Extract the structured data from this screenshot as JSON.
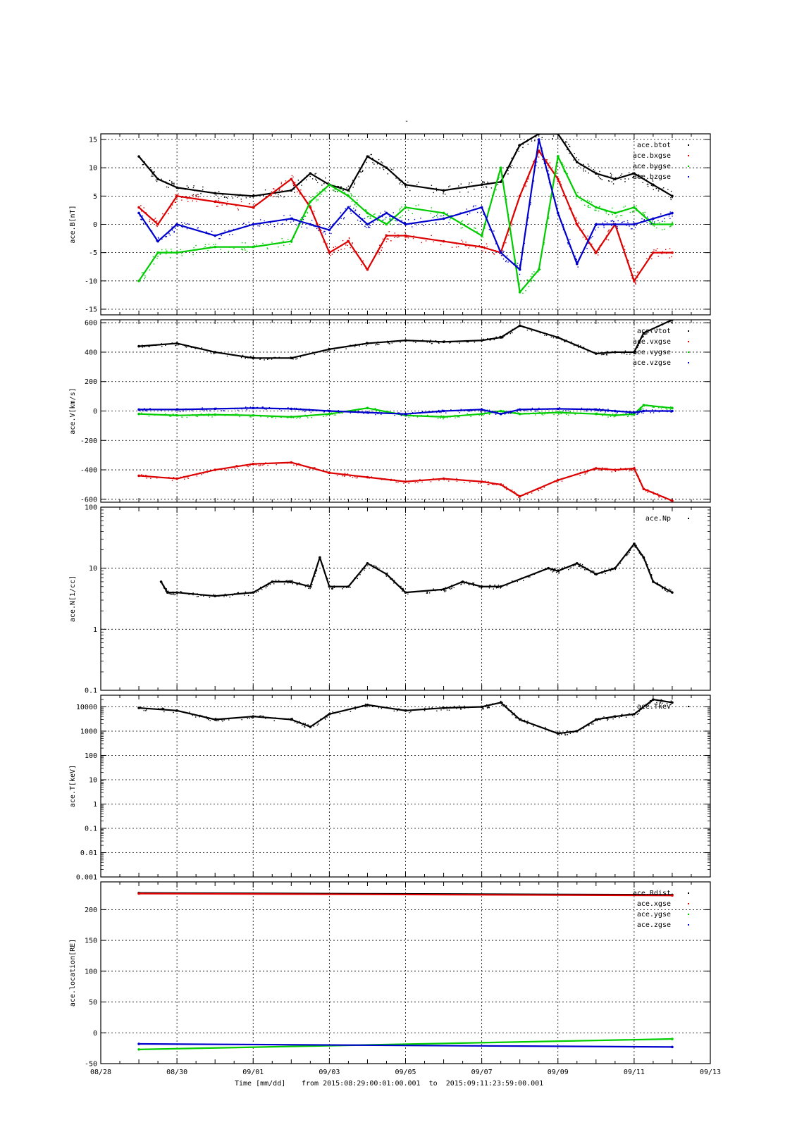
{
  "figure": {
    "title": "-",
    "xlabel": "Time [mm/dd]",
    "range_text": "from 2015:08:29:00:01:00.001  to  2015:09:11:23:59:00.001"
  },
  "colors": {
    "black": "#000000",
    "red": "#dd0000",
    "green": "#00cc00",
    "blue": "#0000cc",
    "grid": "#000000"
  },
  "chart_data": [
    {
      "type": "scatter",
      "ylabel": "ace.B[nT]",
      "xlim": [
        "2015-08-28",
        "2015-09-13"
      ],
      "ylim": [
        -16,
        16
      ],
      "yscale": "linear",
      "yticks": [
        -15,
        -10,
        -5,
        0,
        5,
        10,
        15
      ],
      "ytick_labels": [
        "-15",
        "-10",
        "-5",
        "0",
        "5",
        "10",
        "15"
      ],
      "grid": true,
      "legend_position": "top-right",
      "series": [
        {
          "name": "ace.btot",
          "color": "#000000",
          "x": [
            "2015-08-29",
            "2015-08-29T12:00",
            "2015-08-30",
            "2015-08-31",
            "2015-09-01",
            "2015-09-02",
            "2015-09-02T12:00",
            "2015-09-03",
            "2015-09-03T12:00",
            "2015-09-04",
            "2015-09-04T12:00",
            "2015-09-05",
            "2015-09-06",
            "2015-09-07",
            "2015-09-07T12:00",
            "2015-09-08",
            "2015-09-08T12:00",
            "2015-09-09",
            "2015-09-09T12:00",
            "2015-09-10",
            "2015-09-10T12:00",
            "2015-09-11",
            "2015-09-11T12:00",
            "2015-09-12"
          ],
          "values": [
            12,
            8,
            6.5,
            5.5,
            5,
            6,
            9,
            7,
            6,
            12,
            10,
            7,
            6,
            7,
            7.5,
            14,
            16,
            16,
            11,
            9,
            8,
            9,
            7,
            5
          ]
        },
        {
          "name": "ace.bxgse",
          "color": "#dd0000",
          "x": [
            "2015-08-29",
            "2015-08-29T12:00",
            "2015-08-30",
            "2015-08-31",
            "2015-09-01",
            "2015-09-02",
            "2015-09-02T12:00",
            "2015-09-03",
            "2015-09-03T12:00",
            "2015-09-04",
            "2015-09-04T12:00",
            "2015-09-05",
            "2015-09-06",
            "2015-09-07",
            "2015-09-07T12:00",
            "2015-09-08",
            "2015-09-08T12:00",
            "2015-09-09",
            "2015-09-09T12:00",
            "2015-09-10",
            "2015-09-10T12:00",
            "2015-09-11",
            "2015-09-11T12:00",
            "2015-09-12"
          ],
          "values": [
            3,
            0,
            5,
            4,
            3,
            8,
            3,
            -5,
            -3,
            -8,
            -2,
            -2,
            -3,
            -4,
            -5,
            5,
            13,
            8,
            0,
            -5,
            0,
            -10,
            -5,
            -5
          ]
        },
        {
          "name": "ace.bygse",
          "color": "#00cc00",
          "x": [
            "2015-08-29",
            "2015-08-29T12:00",
            "2015-08-30",
            "2015-08-31",
            "2015-09-01",
            "2015-09-02",
            "2015-09-02T12:00",
            "2015-09-03",
            "2015-09-03T12:00",
            "2015-09-04",
            "2015-09-04T12:00",
            "2015-09-05",
            "2015-09-06",
            "2015-09-07",
            "2015-09-07T12:00",
            "2015-09-08",
            "2015-09-08T12:00",
            "2015-09-09",
            "2015-09-09T12:00",
            "2015-09-10",
            "2015-09-10T12:00",
            "2015-09-11",
            "2015-09-11T12:00",
            "2015-09-12"
          ],
          "values": [
            -10,
            -5,
            -5,
            -4,
            -4,
            -3,
            4,
            7,
            5,
            2,
            0,
            3,
            2,
            -2,
            10,
            -12,
            -8,
            12,
            5,
            3,
            2,
            3,
            0,
            0
          ]
        },
        {
          "name": "ace.bzgse",
          "color": "#0000cc",
          "x": [
            "2015-08-29",
            "2015-08-29T12:00",
            "2015-08-30",
            "2015-08-31",
            "2015-09-01",
            "2015-09-02",
            "2015-09-02T12:00",
            "2015-09-03",
            "2015-09-03T12:00",
            "2015-09-04",
            "2015-09-04T12:00",
            "2015-09-05",
            "2015-09-06",
            "2015-09-07",
            "2015-09-07T12:00",
            "2015-09-08",
            "2015-09-08T12:00",
            "2015-09-09",
            "2015-09-09T12:00",
            "2015-09-10",
            "2015-09-10T12:00",
            "2015-09-11",
            "2015-09-11T12:00",
            "2015-09-12"
          ],
          "values": [
            2,
            -3,
            0,
            -2,
            0,
            1,
            0,
            -1,
            3,
            0,
            2,
            0,
            1,
            3,
            -5,
            -8,
            15,
            2,
            -7,
            0,
            0,
            0,
            1,
            2
          ]
        }
      ]
    },
    {
      "type": "scatter",
      "ylabel": "ace.V[km/s]",
      "xlim": [
        "2015-08-28",
        "2015-09-13"
      ],
      "ylim": [
        -620,
        620
      ],
      "yscale": "linear",
      "yticks": [
        -600,
        -400,
        -200,
        0,
        200,
        400,
        600
      ],
      "ytick_labels": [
        "-600",
        "-400",
        "-200",
        "0",
        "200",
        "400",
        "600"
      ],
      "grid": true,
      "legend_position": "top-right",
      "series": [
        {
          "name": "ace.vtot",
          "color": "#000000",
          "x": [
            "2015-08-29",
            "2015-08-30",
            "2015-08-31",
            "2015-09-01",
            "2015-09-02",
            "2015-09-03",
            "2015-09-04",
            "2015-09-05",
            "2015-09-06",
            "2015-09-07",
            "2015-09-07T12:00",
            "2015-09-08",
            "2015-09-09",
            "2015-09-10",
            "2015-09-10T12:00",
            "2015-09-11",
            "2015-09-11T06:00",
            "2015-09-12"
          ],
          "values": [
            440,
            460,
            400,
            360,
            360,
            420,
            460,
            480,
            470,
            480,
            500,
            580,
            500,
            390,
            400,
            400,
            530,
            620
          ]
        },
        {
          "name": "ace.vxgse",
          "color": "#dd0000",
          "x": [
            "2015-08-29",
            "2015-08-30",
            "2015-08-31",
            "2015-09-01",
            "2015-09-02",
            "2015-09-03",
            "2015-09-04",
            "2015-09-05",
            "2015-09-06",
            "2015-09-07",
            "2015-09-07T12:00",
            "2015-09-08",
            "2015-09-09",
            "2015-09-10",
            "2015-09-10T12:00",
            "2015-09-11",
            "2015-09-11T06:00",
            "2015-09-12"
          ],
          "values": [
            -440,
            -460,
            -400,
            -360,
            -350,
            -420,
            -450,
            -480,
            -460,
            -480,
            -500,
            -580,
            -470,
            -390,
            -400,
            -390,
            -530,
            -610
          ]
        },
        {
          "name": "ace.vygse",
          "color": "#00cc00",
          "x": [
            "2015-08-29",
            "2015-08-30",
            "2015-08-31",
            "2015-09-01",
            "2015-09-02",
            "2015-09-03",
            "2015-09-04",
            "2015-09-05",
            "2015-09-06",
            "2015-09-07",
            "2015-09-07T12:00",
            "2015-09-08",
            "2015-09-09",
            "2015-09-10",
            "2015-09-10T12:00",
            "2015-09-11",
            "2015-09-11T06:00",
            "2015-09-12"
          ],
          "values": [
            -20,
            -30,
            -25,
            -30,
            -40,
            -20,
            20,
            -30,
            -40,
            -20,
            0,
            -20,
            -10,
            -20,
            -30,
            -20,
            40,
            20
          ]
        },
        {
          "name": "ace.vzgse",
          "color": "#0000cc",
          "x": [
            "2015-08-29",
            "2015-08-30",
            "2015-08-31",
            "2015-09-01",
            "2015-09-02",
            "2015-09-03",
            "2015-09-04",
            "2015-09-05",
            "2015-09-06",
            "2015-09-07",
            "2015-09-07T12:00",
            "2015-09-08",
            "2015-09-09",
            "2015-09-10",
            "2015-09-10T12:00",
            "2015-09-11",
            "2015-09-11T06:00",
            "2015-09-12"
          ],
          "values": [
            10,
            10,
            15,
            20,
            15,
            0,
            -10,
            -20,
            0,
            10,
            -20,
            10,
            15,
            10,
            0,
            -10,
            0,
            0
          ]
        }
      ]
    },
    {
      "type": "scatter",
      "ylabel": "ace.N[1/cc]",
      "xlim": [
        "2015-08-28",
        "2015-09-13"
      ],
      "ylim": [
        0.1,
        100
      ],
      "yscale": "log",
      "yticks": [
        0.1,
        1,
        10,
        100
      ],
      "ytick_labels": [
        "0.1",
        "1",
        "10",
        "100"
      ],
      "grid": true,
      "legend_position": "top-right",
      "series": [
        {
          "name": "ace.Np",
          "color": "#000000",
          "x": [
            "2015-08-29T14:00",
            "2015-08-29T18:00",
            "2015-08-30",
            "2015-08-31",
            "2015-09-01",
            "2015-09-01T12:00",
            "2015-09-02",
            "2015-09-02T12:00",
            "2015-09-02T18:00",
            "2015-09-03",
            "2015-09-03T12:00",
            "2015-09-04",
            "2015-09-04T12:00",
            "2015-09-05",
            "2015-09-06",
            "2015-09-06T12:00",
            "2015-09-07",
            "2015-09-07T12:00",
            "2015-09-08T18:00",
            "2015-09-09",
            "2015-09-09T12:00",
            "2015-09-10",
            "2015-09-10T12:00",
            "2015-09-11",
            "2015-09-11T06:00",
            "2015-09-11T12:00",
            "2015-09-12"
          ],
          "values": [
            6,
            4,
            4,
            3.5,
            4,
            6,
            6,
            5,
            15,
            5,
            5,
            12,
            8,
            4,
            4.5,
            6,
            5,
            5,
            10,
            9,
            12,
            8,
            10,
            25,
            15,
            6,
            4
          ]
        }
      ]
    },
    {
      "type": "scatter",
      "ylabel": "ace.T[keV]",
      "xlim": [
        "2015-08-28",
        "2015-09-13"
      ],
      "ylim": [
        0.001,
        30000
      ],
      "yscale": "log",
      "yticks": [
        0.001,
        0.01,
        0.1,
        1,
        10,
        100,
        1000,
        10000
      ],
      "ytick_labels": [
        "0.001",
        "0.01",
        "0.1",
        "1",
        "10",
        "100",
        "1000",
        "10000"
      ],
      "grid": true,
      "legend_position": "top-right",
      "series": [
        {
          "name": "ace.Tkev",
          "color": "#000000",
          "x": [
            "2015-08-29",
            "2015-08-30",
            "2015-08-31",
            "2015-09-01",
            "2015-09-02",
            "2015-09-02T12:00",
            "2015-09-03",
            "2015-09-04",
            "2015-09-05",
            "2015-09-06",
            "2015-09-07",
            "2015-09-07T12:00",
            "2015-09-08",
            "2015-09-09",
            "2015-09-09T12:00",
            "2015-09-10",
            "2015-09-10T12:00",
            "2015-09-11",
            "2015-09-11T12:00",
            "2015-09-12"
          ],
          "values": [
            9000,
            7000,
            3000,
            4000,
            3000,
            1500,
            5000,
            12000,
            7000,
            9000,
            10000,
            15000,
            3000,
            800,
            1000,
            3000,
            4000,
            5000,
            20000,
            15000
          ]
        }
      ]
    },
    {
      "type": "scatter",
      "ylabel": "ace.location[RE]",
      "xlim": [
        "2015-08-28",
        "2015-09-13"
      ],
      "ylim": [
        -50,
        245
      ],
      "yscale": "linear",
      "yticks": [
        -50,
        0,
        50,
        100,
        150,
        200
      ],
      "ytick_labels": [
        "-50",
        "0",
        "50",
        "100",
        "150",
        "200"
      ],
      "grid": true,
      "legend_position": "top-right",
      "series": [
        {
          "name": "ace.Rdist",
          "color": "#000000",
          "x": [
            "2015-08-29",
            "2015-09-12"
          ],
          "values": [
            227,
            224
          ]
        },
        {
          "name": "ace.xgse",
          "color": "#dd0000",
          "x": [
            "2015-08-29",
            "2015-09-12"
          ],
          "values": [
            226,
            223
          ]
        },
        {
          "name": "ace.ygse",
          "color": "#00cc00",
          "x": [
            "2015-08-29",
            "2015-09-12"
          ],
          "values": [
            -27,
            -10
          ]
        },
        {
          "name": "ace.zgse",
          "color": "#0000cc",
          "x": [
            "2015-08-29",
            "2015-09-12"
          ],
          "values": [
            -18,
            -23
          ]
        }
      ]
    }
  ],
  "xaxis": {
    "ticks": [
      "2015-08-28",
      "2015-08-30",
      "2015-09-01",
      "2015-09-03",
      "2015-09-05",
      "2015-09-07",
      "2015-09-09",
      "2015-09-11",
      "2015-09-13"
    ],
    "tick_labels": [
      "08/28",
      "08/30",
      "09/01",
      "09/03",
      "09/05",
      "09/07",
      "09/09",
      "09/11",
      "09/13"
    ]
  }
}
